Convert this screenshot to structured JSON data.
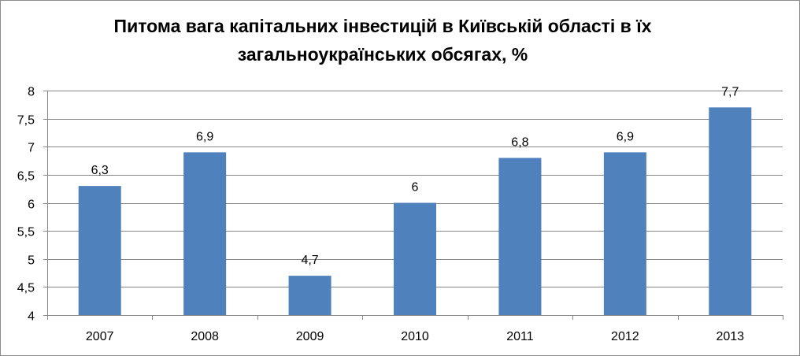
{
  "chart_data": {
    "type": "bar",
    "title_lines": [
      "Питома вага капітальних інвестицій в Київській області в їх",
      "загальноукраїнських обсягах, %"
    ],
    "categories": [
      "2007",
      "2008",
      "2009",
      "2010",
      "2011",
      "2012",
      "2013"
    ],
    "values": [
      6.3,
      6.9,
      4.7,
      6,
      6.8,
      6.9,
      7.7
    ],
    "data_labels": [
      "6,3",
      "6,9",
      "4,7",
      "6",
      "6,8",
      "6,9",
      "7,7"
    ],
    "ylim": [
      4,
      8
    ],
    "y_ticks": [
      4,
      4.5,
      5,
      5.5,
      6,
      6.5,
      7,
      7.5,
      8
    ],
    "y_tick_labels": [
      "4",
      "4,5",
      "5",
      "5,5",
      "6",
      "6,5",
      "7",
      "7,5",
      "8"
    ],
    "grid": true,
    "legend": "none",
    "bar_color": "#4f81bd",
    "grid_color": "#868686"
  }
}
